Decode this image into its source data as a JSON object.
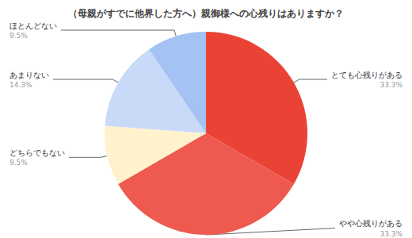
{
  "chart_data": {
    "type": "pie",
    "title": "（母親がすでに他界した方へ）親御様への心残りはありますか？",
    "categories": [
      "とても心残りがある",
      "やや心残りがある",
      "どちらでもない",
      "あまりない",
      "ほとんどない"
    ],
    "values": [
      33.3,
      33.3,
      9.5,
      14.3,
      9.5
    ],
    "value_labels": [
      "33.3%",
      "33.3%",
      "9.5%",
      "14.3%",
      "9.5%"
    ],
    "colors": [
      "#ea4335",
      "#ee5a4f",
      "#fff2cc",
      "#c9daf8",
      "#a4c2f4"
    ],
    "data_labels": true
  }
}
